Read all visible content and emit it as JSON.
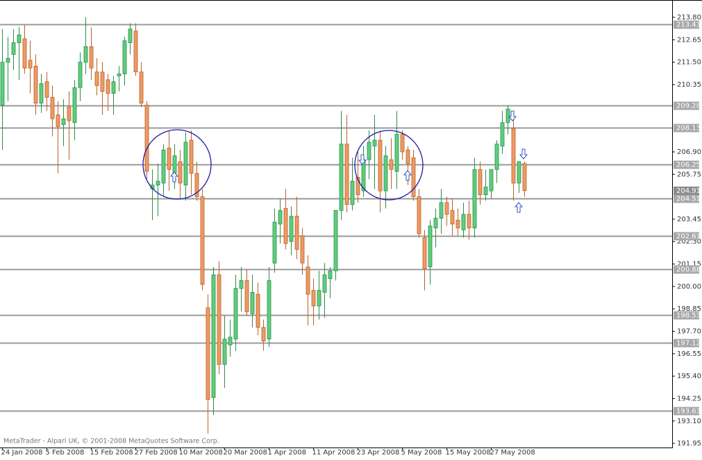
{
  "chart_data": {
    "type": "candlestick",
    "footer": "MetaTrader - Alpari UK, © 2001-2008 MetaQuotes Software Corp.",
    "categories": [
      "24 Jan 2008",
      null,
      null,
      null,
      null,
      null,
      null,
      null,
      "5 Feb 2008",
      null,
      null,
      null,
      null,
      null,
      null,
      null,
      "15 Feb 2008",
      null,
      null,
      null,
      null,
      null,
      null,
      null,
      "27 Feb 2008",
      null,
      null,
      null,
      null,
      null,
      null,
      null,
      "10 Mar 2008",
      null,
      null,
      null,
      null,
      null,
      null,
      null,
      "20 Mar 2008",
      null,
      null,
      null,
      null,
      null,
      null,
      null,
      "1 Apr 2008",
      null,
      null,
      null,
      null,
      null,
      null,
      null,
      "11 Apr 2008",
      null,
      null,
      null,
      null,
      null,
      null,
      null,
      "23 Apr 2008",
      null,
      null,
      null,
      null,
      null,
      null,
      null,
      "5 May 2008",
      null,
      null,
      null,
      null,
      null,
      null,
      null,
      "15 May 2008",
      null,
      null,
      null,
      null,
      null,
      null,
      null,
      "27 May 2008",
      null,
      null,
      null,
      null,
      null,
      null
    ],
    "open": [
      209.3,
      211.5,
      211.9,
      212.5,
      212.7,
      211.6,
      211.3,
      209.4,
      210.5,
      209.7,
      208.8,
      208.3,
      209.2,
      208.4,
      210.2,
      211.5,
      212.3,
      211.0,
      211.0,
      210.6,
      209.9,
      210.8,
      210.9,
      212.5,
      213.1,
      211.0,
      209.3,
      205.0,
      205.2,
      205.3,
      207.1,
      205.8,
      206.4,
      205.2,
      207.5,
      205.8,
      204.6,
      198.9,
      194.3,
      200.6,
      196.0,
      197.0,
      197.3,
      199.9,
      200.3,
      198.6,
      199.6,
      197.9,
      197.3,
      201.2,
      203.2,
      204.0,
      202.3,
      203.6,
      202.6,
      201.0,
      199.8,
      199.0,
      199.7,
      200.4,
      200.8,
      203.9,
      207.3,
      204.2,
      205.6,
      204.9,
      206.5,
      207.2,
      207.5,
      204.9,
      206.5,
      205.9,
      207.8,
      207.0,
      206.6,
      204.6,
      202.5,
      201.0,
      203.0,
      203.5,
      204.3,
      203.9,
      203.4,
      202.9,
      203.7,
      203.0,
      206.0,
      204.7,
      204.9,
      206.0,
      207.2,
      208.4,
      208.1,
      205.3,
      206.3
    ],
    "high": [
      213.2,
      212.8,
      213.2,
      213.3,
      213.4,
      212.6,
      211.9,
      210.9,
      211.0,
      210.3,
      209.5,
      209.6,
      210.0,
      210.6,
      212.0,
      213.8,
      213.3,
      211.7,
      211.5,
      210.9,
      210.8,
      211.3,
      212.8,
      213.5,
      213.5,
      211.5,
      209.5,
      206.0,
      206.3,
      207.3,
      208.0,
      207.3,
      207.0,
      207.9,
      208.0,
      206.4,
      205.0,
      199.6,
      201.0,
      201.3,
      198.5,
      198.3,
      200.6,
      201.0,
      200.9,
      200.6,
      200.2,
      198.3,
      201.0,
      204.0,
      204.5,
      205.0,
      204.1,
      204.6,
      203.0,
      201.6,
      200.4,
      200.8,
      201.2,
      201.0,
      203.9,
      209.0,
      208.8,
      206.6,
      206.9,
      207.2,
      208.0,
      208.8,
      208.0,
      207.2,
      207.6,
      209.0,
      208.0,
      207.2,
      207.0,
      205.0,
      202.9,
      203.4,
      204.0,
      205.0,
      204.6,
      204.5,
      204.0,
      204.3,
      204.4,
      206.6,
      206.4,
      206.0,
      206.0,
      207.5,
      209.0,
      209.3,
      208.6,
      206.4,
      206.4
    ],
    "low": [
      207.0,
      209.5,
      211.1,
      210.6,
      210.9,
      209.9,
      208.8,
      208.9,
      209.0,
      207.7,
      205.8,
      207.2,
      206.5,
      207.5,
      209.5,
      210.9,
      210.6,
      209.8,
      208.8,
      209.0,
      208.8,
      210.0,
      210.3,
      211.9,
      210.8,
      209.2,
      205.5,
      203.4,
      203.6,
      204.6,
      204.9,
      205.0,
      204.5,
      204.4,
      204.7,
      204.4,
      199.8,
      192.45,
      193.4,
      195.5,
      194.8,
      196.4,
      196.7,
      198.7,
      198.5,
      197.9,
      197.5,
      196.7,
      196.9,
      200.7,
      202.2,
      201.9,
      201.6,
      201.4,
      200.6,
      198.0,
      198.0,
      198.3,
      198.4,
      199.4,
      200.3,
      203.4,
      203.8,
      203.9,
      204.3,
      204.6,
      205.5,
      205.0,
      203.8,
      204.0,
      205.0,
      205.0,
      206.5,
      205.2,
      204.4,
      202.5,
      199.8,
      200.1,
      202.0,
      202.7,
      203.1,
      202.6,
      202.6,
      202.5,
      202.4,
      202.5,
      204.2,
      204.4,
      204.5,
      205.3,
      206.8,
      207.8,
      204.4,
      204.8,
      204.6
    ],
    "close": [
      211.5,
      211.7,
      212.5,
      212.9,
      211.2,
      211.2,
      209.4,
      210.4,
      209.7,
      208.6,
      208.2,
      208.6,
      208.5,
      210.2,
      211.5,
      212.3,
      211.2,
      210.3,
      210.0,
      209.9,
      210.5,
      210.9,
      212.6,
      213.2,
      211.0,
      209.4,
      205.9,
      205.2,
      205.4,
      207.0,
      206.0,
      206.7,
      205.3,
      207.4,
      205.8,
      204.6,
      200.1,
      194.2,
      200.6,
      196.0,
      197.3,
      197.4,
      199.9,
      200.3,
      198.7,
      199.7,
      197.9,
      197.2,
      200.3,
      203.3,
      203.9,
      202.2,
      203.6,
      201.9,
      201.2,
      199.6,
      199.0,
      199.8,
      200.6,
      200.8,
      203.9,
      207.3,
      204.2,
      205.4,
      204.7,
      206.5,
      207.4,
      207.5,
      204.9,
      206.7,
      206.0,
      207.8,
      206.9,
      206.3,
      204.6,
      202.7,
      200.9,
      203.1,
      203.5,
      204.3,
      203.7,
      203.2,
      203.0,
      203.7,
      203.0,
      206.0,
      204.7,
      205.1,
      206.0,
      207.3,
      208.4,
      209.1,
      205.3,
      206.4,
      204.91
    ],
    "up_color": "#5ccf7d",
    "down_color": "#ee9a62",
    "ylim": [
      191.74,
      214.69
    ],
    "yticks": [
      {
        "value": 213.8,
        "label": "213.80"
      },
      212.65,
      {
        "value": 211.5,
        "label": "211.50"
      },
      210.35,
      {
        "value": 206.9,
        "label": "206.90"
      },
      205.75,
      203.45,
      {
        "value": 202.3,
        "label": "202.30"
      },
      201.15,
      {
        "value": 200,
        "label": "200.00"
      },
      198.85,
      {
        "value": 197.7,
        "label": "197.70"
      },
      196.55,
      {
        "value": 195.4,
        "label": "195.40"
      },
      194.25,
      {
        "value": 193.1,
        "label": "193.10"
      },
      191.95
    ],
    "hlines": [
      213.43,
      209.28,
      208.13,
      206.25,
      204.51,
      202.61,
      200.88,
      198.53,
      197.12,
      193.63
    ],
    "last_price": 204.91
  }
}
